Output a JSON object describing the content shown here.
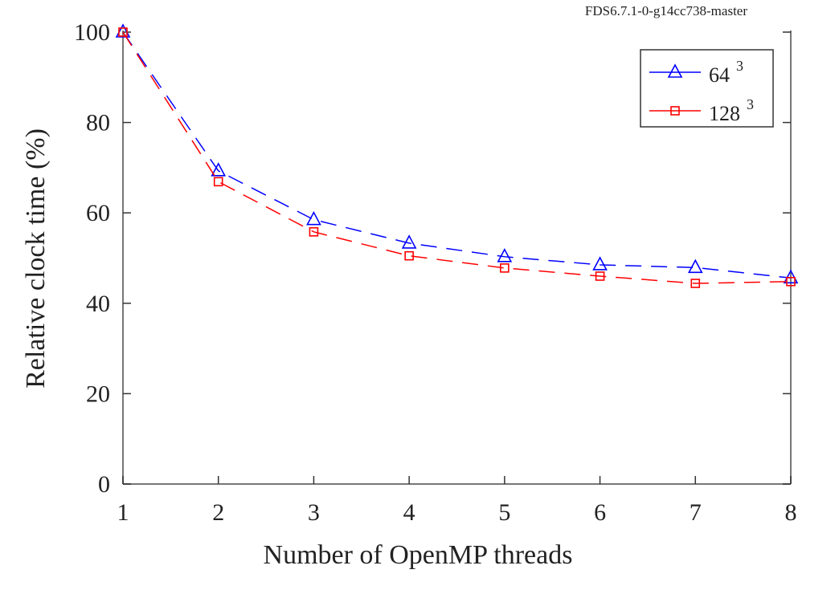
{
  "chart_data": {
    "type": "line",
    "title": "FDS6.7.1-0-g14cc738-master",
    "xlabel": "Number of OpenMP threads",
    "ylabel": "Relative clock time (%)",
    "xlim": [
      1,
      8
    ],
    "ylim": [
      0,
      100
    ],
    "xticks": [
      1,
      2,
      3,
      4,
      5,
      6,
      7,
      8
    ],
    "yticks": [
      0,
      20,
      40,
      60,
      80,
      100
    ],
    "grid": false,
    "legend_placement": "top-right",
    "x": [
      1,
      2,
      3,
      4,
      5,
      6,
      7,
      8
    ],
    "series": [
      {
        "name": "64",
        "superscript": "3",
        "color": "#0000ff",
        "marker": "triangle",
        "line": "dashed",
        "values": [
          100,
          69.3,
          58.5,
          53.3,
          50.3,
          48.5,
          47.9,
          45.6
        ]
      },
      {
        "name": "128",
        "superscript": "3",
        "color": "#ff0000",
        "marker": "square",
        "line": "dashed",
        "values": [
          100,
          66.9,
          55.8,
          50.5,
          47.8,
          46.0,
          44.4,
          44.8
        ]
      }
    ]
  }
}
